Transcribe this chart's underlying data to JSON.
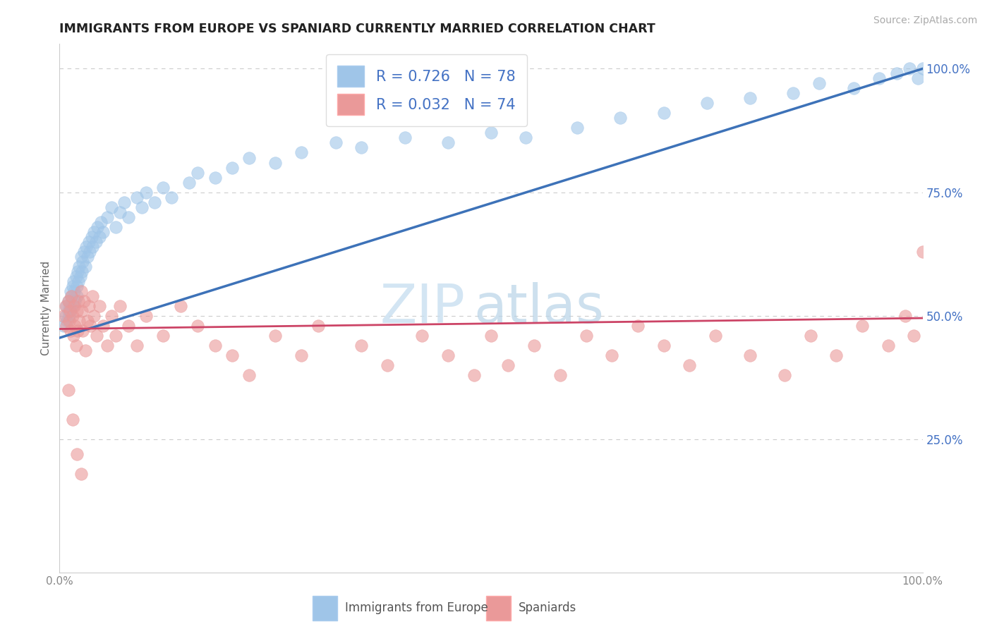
{
  "title": "IMMIGRANTS FROM EUROPE VS SPANIARD CURRENTLY MARRIED CORRELATION CHART",
  "source": "Source: ZipAtlas.com",
  "ylabel": "Currently Married",
  "legend_label1": "Immigrants from Europe",
  "legend_label2": "Spaniards",
  "R1": 0.726,
  "N1": 78,
  "R2": 0.032,
  "N2": 74,
  "color1": "#9fc5e8",
  "color2": "#ea9999",
  "line_color1": "#3d72b8",
  "line_color2": "#cc4466",
  "background_color": "#ffffff",
  "grid_color": "#cccccc",
  "tick_label_color": "#4472c4",
  "axis_label_color": "#666666",
  "source_color": "#aaaaaa",
  "watermark_color": "#c8dff0",
  "blue_x": [
    0.005,
    0.007,
    0.008,
    0.009,
    0.01,
    0.01,
    0.011,
    0.012,
    0.013,
    0.013,
    0.014,
    0.015,
    0.015,
    0.016,
    0.017,
    0.018,
    0.019,
    0.02,
    0.02,
    0.021,
    0.022,
    0.023,
    0.024,
    0.025,
    0.026,
    0.027,
    0.028,
    0.03,
    0.031,
    0.032,
    0.034,
    0.035,
    0.037,
    0.038,
    0.04,
    0.042,
    0.044,
    0.046,
    0.048,
    0.05,
    0.055,
    0.06,
    0.065,
    0.07,
    0.075,
    0.08,
    0.09,
    0.095,
    0.1,
    0.11,
    0.12,
    0.13,
    0.15,
    0.16,
    0.18,
    0.2,
    0.22,
    0.25,
    0.28,
    0.32,
    0.35,
    0.4,
    0.45,
    0.5,
    0.54,
    0.6,
    0.65,
    0.7,
    0.75,
    0.8,
    0.85,
    0.88,
    0.92,
    0.95,
    0.97,
    0.985,
    0.995,
    1.0
  ],
  "blue_y": [
    0.48,
    0.5,
    0.52,
    0.49,
    0.51,
    0.53,
    0.5,
    0.52,
    0.55,
    0.51,
    0.54,
    0.56,
    0.52,
    0.57,
    0.55,
    0.53,
    0.58,
    0.56,
    0.54,
    0.59,
    0.57,
    0.6,
    0.58,
    0.62,
    0.59,
    0.61,
    0.63,
    0.6,
    0.64,
    0.62,
    0.65,
    0.63,
    0.66,
    0.64,
    0.67,
    0.65,
    0.68,
    0.66,
    0.69,
    0.67,
    0.7,
    0.72,
    0.68,
    0.71,
    0.73,
    0.7,
    0.74,
    0.72,
    0.75,
    0.73,
    0.76,
    0.74,
    0.77,
    0.79,
    0.78,
    0.8,
    0.82,
    0.81,
    0.83,
    0.85,
    0.84,
    0.86,
    0.85,
    0.87,
    0.86,
    0.88,
    0.9,
    0.91,
    0.93,
    0.94,
    0.95,
    0.97,
    0.96,
    0.98,
    0.99,
    1.0,
    0.98,
    1.0
  ],
  "pink_x": [
    0.005,
    0.007,
    0.008,
    0.01,
    0.011,
    0.012,
    0.013,
    0.014,
    0.015,
    0.016,
    0.017,
    0.018,
    0.019,
    0.02,
    0.021,
    0.022,
    0.023,
    0.025,
    0.026,
    0.027,
    0.028,
    0.03,
    0.032,
    0.034,
    0.036,
    0.038,
    0.04,
    0.043,
    0.046,
    0.05,
    0.055,
    0.06,
    0.065,
    0.07,
    0.08,
    0.09,
    0.1,
    0.12,
    0.14,
    0.16,
    0.18,
    0.2,
    0.22,
    0.25,
    0.28,
    0.3,
    0.35,
    0.38,
    0.42,
    0.45,
    0.48,
    0.5,
    0.52,
    0.55,
    0.58,
    0.61,
    0.64,
    0.67,
    0.7,
    0.73,
    0.76,
    0.8,
    0.84,
    0.87,
    0.9,
    0.93,
    0.96,
    0.98,
    0.99,
    1.0,
    0.01,
    0.015,
    0.02,
    0.025
  ],
  "pink_y": [
    0.5,
    0.52,
    0.48,
    0.53,
    0.49,
    0.51,
    0.47,
    0.54,
    0.5,
    0.46,
    0.52,
    0.48,
    0.44,
    0.51,
    0.47,
    0.53,
    0.49,
    0.55,
    0.51,
    0.47,
    0.53,
    0.43,
    0.49,
    0.52,
    0.48,
    0.54,
    0.5,
    0.46,
    0.52,
    0.48,
    0.44,
    0.5,
    0.46,
    0.52,
    0.48,
    0.44,
    0.5,
    0.46,
    0.52,
    0.48,
    0.44,
    0.42,
    0.38,
    0.46,
    0.42,
    0.48,
    0.44,
    0.4,
    0.46,
    0.42,
    0.38,
    0.46,
    0.4,
    0.44,
    0.38,
    0.46,
    0.42,
    0.48,
    0.44,
    0.4,
    0.46,
    0.42,
    0.38,
    0.46,
    0.42,
    0.48,
    0.44,
    0.5,
    0.46,
    0.63,
    0.35,
    0.29,
    0.22,
    0.18
  ],
  "blue_line_x": [
    0.0,
    1.0
  ],
  "blue_line_y": [
    0.455,
    1.0
  ],
  "pink_line_x": [
    0.0,
    1.0
  ],
  "pink_line_y": [
    0.473,
    0.495
  ],
  "ylim": [
    -0.02,
    1.05
  ],
  "xlim": [
    0.0,
    1.0
  ],
  "yticks": [
    0.25,
    0.5,
    0.75,
    1.0
  ],
  "xticks": [
    0.0,
    1.0
  ]
}
